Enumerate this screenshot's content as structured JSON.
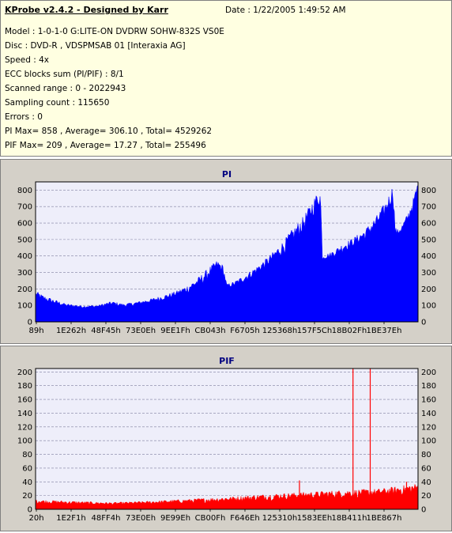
{
  "header": {
    "title": "KProbe v2.4.2 - Designed by Karr",
    "date": "Date : 1/22/2005 1:49:52 AM",
    "lines": [
      "Model : 1-0-1-0 G:LITE-ON DVDRW SOHW-832S  VS0E",
      "Disc : DVD-R , VDSPMSAB 01 [Interaxia AG]",
      "Speed : 4x",
      "ECC blocks sum (PI/PIF) : 8/1",
      "Scanned range : 0 - 2022943",
      "Sampling count : 115650",
      "Errors : 0",
      "PI Max= 858 , Average= 306.10 , Total= 4529262",
      "PIF Max= 209 , Average= 17.27 , Total= 255496"
    ]
  },
  "colors": {
    "pi_fill": "#0000ff",
    "pif_fill": "#ff0000",
    "plot_bg": "#eeeefa",
    "grid": "#8080a0",
    "title": "#000080"
  },
  "chart_data": [
    {
      "type": "area",
      "title": "PI",
      "ylim": [
        0,
        850
      ],
      "yticks": [
        0,
        100,
        200,
        300,
        400,
        500,
        600,
        700,
        800
      ],
      "right_axis": true,
      "grid": "dashed horizontal",
      "xtick_labels": [
        "89h",
        "1E262h",
        "48F45h",
        "73E0Eh",
        "9EE1Fh",
        "CB043h",
        "F6705h",
        "125368h",
        "157F5Ch",
        "18B02Fh",
        "1BE37Eh"
      ],
      "series": [
        {
          "envelope": [
            [
              0.0,
              190,
              140
            ],
            [
              0.02,
              160,
              120
            ],
            [
              0.05,
              135,
              100
            ],
            [
              0.08,
              110,
              88
            ],
            [
              0.12,
              100,
              82
            ],
            [
              0.16,
              100,
              85
            ],
            [
              0.19,
              120,
              90
            ],
            [
              0.2,
              125,
              95
            ],
            [
              0.23,
              110,
              88
            ],
            [
              0.26,
              120,
              95
            ],
            [
              0.3,
              140,
              110
            ],
            [
              0.34,
              165,
              130
            ],
            [
              0.37,
              190,
              150
            ],
            [
              0.4,
              225,
              170
            ],
            [
              0.43,
              280,
              205
            ],
            [
              0.455,
              335,
              255
            ],
            [
              0.475,
              375,
              300
            ],
            [
              0.49,
              345,
              290
            ],
            [
              0.5,
              230,
              200
            ],
            [
              0.52,
              245,
              210
            ],
            [
              0.55,
              290,
              240
            ],
            [
              0.58,
              340,
              285
            ],
            [
              0.61,
              400,
              330
            ],
            [
              0.64,
              470,
              385
            ],
            [
              0.67,
              560,
              450
            ],
            [
              0.7,
              640,
              530
            ],
            [
              0.72,
              720,
              600
            ],
            [
              0.735,
              780,
              680
            ],
            [
              0.745,
              790,
              690
            ],
            [
              0.75,
              410,
              370
            ],
            [
              0.77,
              420,
              380
            ],
            [
              0.8,
              470,
              410
            ],
            [
              0.83,
              510,
              450
            ],
            [
              0.86,
              560,
              480
            ],
            [
              0.89,
              640,
              540
            ],
            [
              0.915,
              730,
              620
            ],
            [
              0.93,
              800,
              700
            ],
            [
              0.935,
              850,
              720
            ],
            [
              0.94,
              580,
              520
            ],
            [
              0.945,
              560,
              510
            ],
            [
              0.96,
              600,
              530
            ],
            [
              0.975,
              670,
              590
            ],
            [
              0.99,
              770,
              680
            ],
            [
              1.0,
              858,
              760
            ]
          ]
        }
      ]
    },
    {
      "type": "area",
      "title": "PIF",
      "ylim": [
        0,
        205
      ],
      "yticks": [
        0,
        20,
        40,
        60,
        80,
        100,
        120,
        140,
        160,
        180,
        200
      ],
      "right_axis": true,
      "grid": "dashed horizontal",
      "xtick_labels": [
        "20h",
        "1E2F1h",
        "48FF4h",
        "73E0Eh",
        "9E99Eh",
        "CB00Fh",
        "F646Eh",
        "125310h",
        "1583EEh",
        "18B411h",
        "1BE867h"
      ],
      "series": [
        {
          "envelope": [
            [
              0.0,
              14,
              8
            ],
            [
              0.1,
              12,
              6
            ],
            [
              0.2,
              10,
              6
            ],
            [
              0.3,
              12,
              7
            ],
            [
              0.4,
              15,
              8
            ],
            [
              0.5,
              18,
              10
            ],
            [
              0.6,
              22,
              12
            ],
            [
              0.7,
              25,
              14
            ],
            [
              0.8,
              28,
              15
            ],
            [
              0.9,
              30,
              17
            ],
            [
              1.0,
              38,
              20
            ]
          ],
          "spikes": [
            [
              0.83,
              209
            ],
            [
              0.875,
              209
            ],
            [
              0.69,
              42
            ],
            [
              0.97,
              40
            ]
          ]
        }
      ]
    }
  ]
}
